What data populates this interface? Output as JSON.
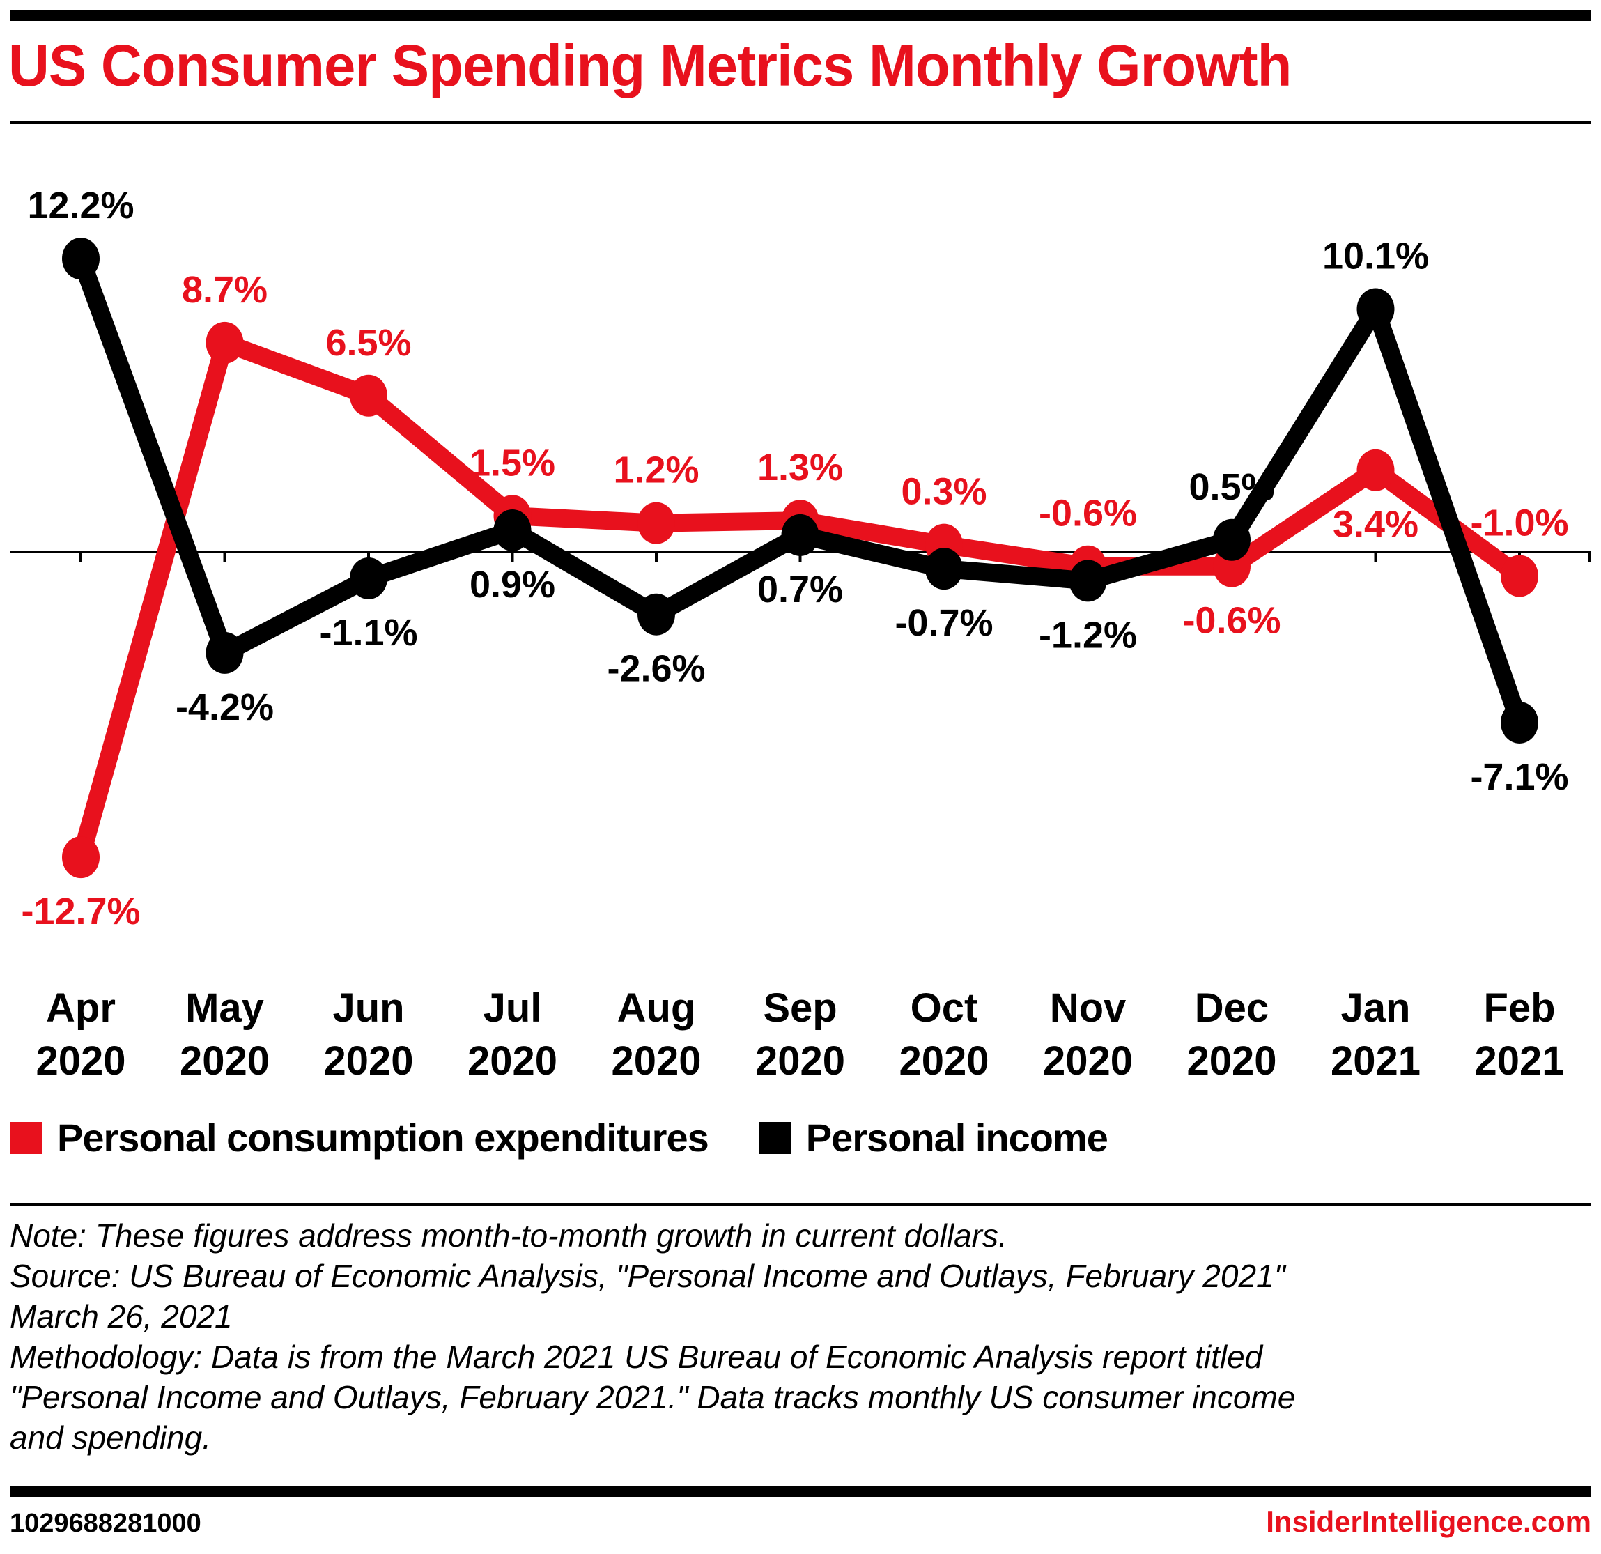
{
  "colors": {
    "pce": "#E8111D",
    "income": "#000000",
    "title": "#E8111D",
    "brand": "#E8111D"
  },
  "header": {
    "title": "US Consumer Spending Metrics Monthly Growth"
  },
  "chart_data": {
    "type": "line",
    "title": "US Consumer Spending Metrics Monthly Growth",
    "xlabel": "",
    "ylabel": "",
    "categories": [
      [
        "Apr",
        "2020"
      ],
      [
        "May",
        "2020"
      ],
      [
        "Jun",
        "2020"
      ],
      [
        "Jul",
        "2020"
      ],
      [
        "Aug",
        "2020"
      ],
      [
        "Sep",
        "2020"
      ],
      [
        "Oct",
        "2020"
      ],
      [
        "Nov",
        "2020"
      ],
      [
        "Dec",
        "2020"
      ],
      [
        "Jan",
        "2021"
      ],
      [
        "Feb",
        "2021"
      ]
    ],
    "ylim": [
      -14,
      14
    ],
    "grid": false,
    "legend_position": "bottom-left",
    "series": [
      {
        "name": "Personal consumption expenditures",
        "color": "#E8111D",
        "values": [
          -12.7,
          8.7,
          6.5,
          1.5,
          1.2,
          1.3,
          0.3,
          -0.6,
          -0.6,
          3.4,
          -1.0
        ],
        "labels": [
          "-12.7%",
          "8.7%",
          "6.5%",
          "1.5%",
          "1.2%",
          "1.3%",
          "0.3%",
          "-0.6%",
          "-0.6%",
          "3.4%",
          "-1.0%"
        ],
        "label_side": [
          "below",
          "above",
          "above",
          "above",
          "above",
          "above",
          "above",
          "above",
          "below",
          "below",
          "above"
        ]
      },
      {
        "name": "Personal income",
        "color": "#000000",
        "values": [
          12.2,
          -4.2,
          -1.1,
          0.9,
          -2.6,
          0.7,
          -0.7,
          -1.2,
          0.5,
          10.1,
          -7.1
        ],
        "labels": [
          "12.2%",
          "-4.2%",
          "-1.1%",
          "0.9%",
          "-2.6%",
          "0.7%",
          "-0.7%",
          "-1.2%",
          "0.5%",
          "10.1%",
          "-7.1%"
        ],
        "label_side": [
          "above",
          "below",
          "below",
          "below",
          "below",
          "below",
          "below",
          "below",
          "above",
          "above",
          "below"
        ]
      }
    ]
  },
  "legend": {
    "items": [
      {
        "label": "Personal consumption expenditures",
        "color": "#E8111D"
      },
      {
        "label": "Personal income",
        "color": "#000000"
      }
    ]
  },
  "notes": {
    "lines": [
      "Note: These figures address month-to-month growth in current dollars.",
      "Source: US Bureau of Economic Analysis, \"Personal Income and Outlays, February 2021\"",
      "March 26, 2021",
      "Methodology: Data is from the March 2021 US Bureau of Economic Analysis report titled",
      "\"Personal Income and Outlays, February 2021.\" Data tracks monthly US consumer income",
      "and spending."
    ]
  },
  "footer": {
    "chart_id": "1029688281000",
    "brand": "InsiderIntelligence.com"
  }
}
